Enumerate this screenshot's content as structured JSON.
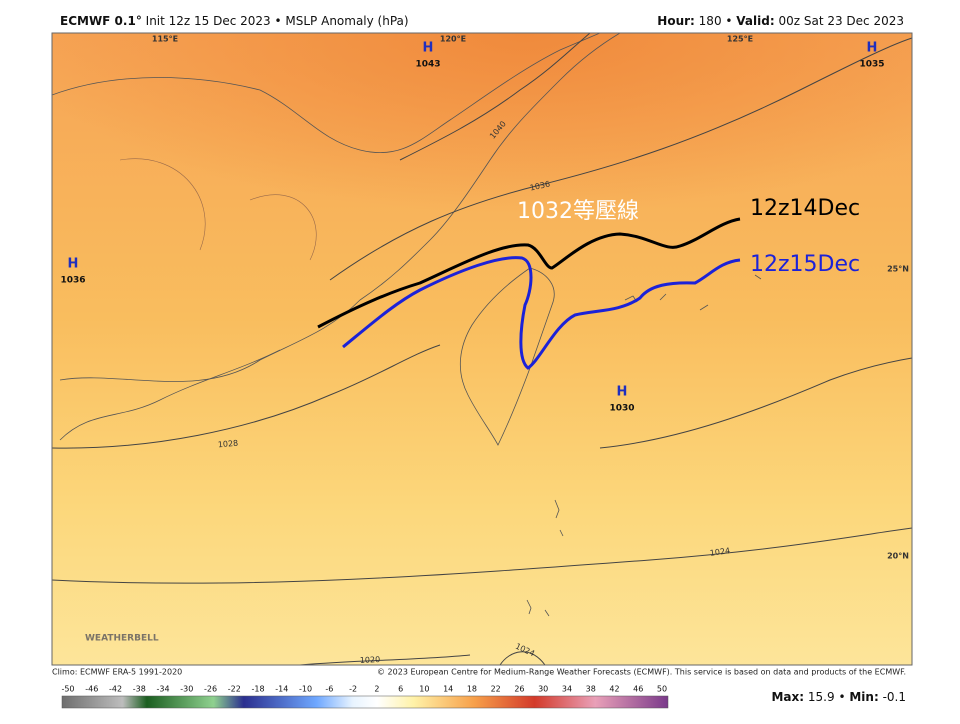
{
  "header": {
    "model": "ECMWF 0.1°",
    "init": "Init 12z 15 Dec 2023 • MSLP Anomaly (hPa)",
    "hour_label": "Hour:",
    "hour": "180 •",
    "valid_label": "Valid:",
    "valid": "00z Sat 23 Dec 2023"
  },
  "map": {
    "longitudes": [
      "115°E",
      "120°E",
      "125°E"
    ],
    "latitudes": [
      "25°N",
      "20°N"
    ],
    "highs": [
      {
        "symbol": "H",
        "value": "1043"
      },
      {
        "symbol": "H",
        "value": "1035"
      },
      {
        "symbol": "H",
        "value": "1036"
      },
      {
        "symbol": "H",
        "value": "1030"
      }
    ],
    "isobar_labels": [
      "1040",
      "1036",
      "1028",
      "1024",
      "1020",
      "1024"
    ],
    "annotations": {
      "isobar": "1032等壓線",
      "line1": "12z14Dec",
      "line2": "12z15Dec"
    },
    "watermark": "WEATHERBELL"
  },
  "footer": {
    "climo": "Climo: ECMWF ERA-5 1991-2020",
    "copyright": "© 2023 European Centre for Medium-Range Weather Forecasts (ECMWF). This service is based on data and products of the ECMWF.",
    "colorbar_ticks": [
      -50,
      -46,
      -42,
      -38,
      -34,
      -30,
      -26,
      -22,
      -18,
      -14,
      -10,
      -6,
      -2,
      2,
      6,
      10,
      14,
      18,
      22,
      26,
      30,
      34,
      38,
      42,
      46,
      50
    ],
    "stats": {
      "max_label": "Max:",
      "max": 15.9,
      "separator": "•",
      "min_label": "Min:",
      "min": -0.1
    }
  }
}
